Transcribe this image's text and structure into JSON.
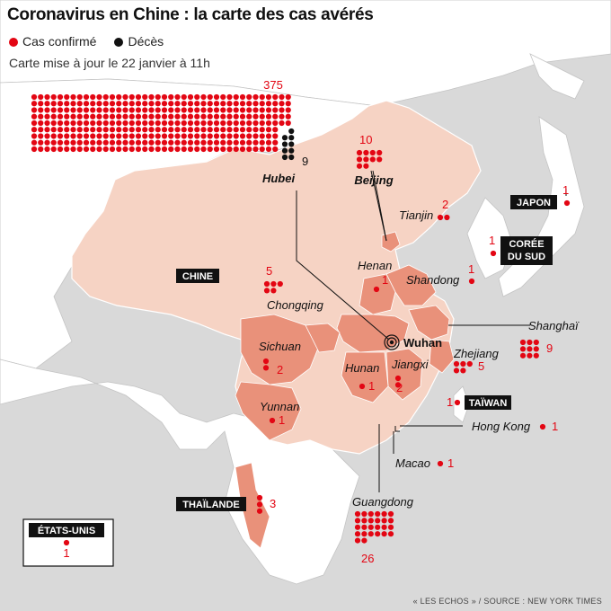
{
  "header": {
    "title": "Coronavirus en Chine : la carte des cas avérés",
    "legend_confirmed": "Cas confirmé",
    "legend_deaths": "Décès",
    "updated": "Carte mise à jour le 22 janvier à 11h"
  },
  "colors": {
    "confirmed": "#e30613",
    "deaths": "#111111",
    "china_fill": "#f6d3c4",
    "province_fill": "#e9917a",
    "water": "#d9d9d9",
    "land": "#ffffff"
  },
  "countries": [
    {
      "id": "china",
      "label": "CHINE"
    },
    {
      "id": "japan",
      "label": "JAPON",
      "confirmed": 1
    },
    {
      "id": "korea",
      "label_line1": "CORÉE",
      "label_line2": "DU SUD",
      "confirmed": 1
    },
    {
      "id": "taiwan",
      "label": "TAÏWAN",
      "confirmed": 1
    },
    {
      "id": "thailand",
      "label": "THAÏLANDE",
      "confirmed": 3
    },
    {
      "id": "usa",
      "label": "ÉTATS-UNIS",
      "confirmed": 1
    }
  ],
  "hubei": {
    "label": "Hubei",
    "confirmed": 375,
    "deaths": 9,
    "epicenter": "Wuhan"
  },
  "regions": [
    {
      "id": "beijing",
      "label": "Beijing",
      "confirmed": 10
    },
    {
      "id": "tianjin",
      "label": "Tianjin",
      "confirmed": 2
    },
    {
      "id": "henan",
      "label": "Henan",
      "confirmed": 1
    },
    {
      "id": "shandong",
      "label": "Shandong",
      "confirmed": 1
    },
    {
      "id": "chongqing",
      "label": "Chongqing",
      "confirmed": 5
    },
    {
      "id": "shanghai",
      "label": "Shanghaï",
      "confirmed": 9
    },
    {
      "id": "zhejiang",
      "label": "Zhejiang",
      "confirmed": 5
    },
    {
      "id": "sichuan",
      "label": "Sichuan",
      "confirmed": 2
    },
    {
      "id": "hunan",
      "label": "Hunan",
      "confirmed": 1
    },
    {
      "id": "jiangxi",
      "label": "Jiangxi",
      "confirmed": 2
    },
    {
      "id": "yunnan",
      "label": "Yunnan",
      "confirmed": 1
    },
    {
      "id": "hongkong",
      "label": "Hong Kong",
      "confirmed": 1
    },
    {
      "id": "macao",
      "label": "Macao",
      "confirmed": 1
    },
    {
      "id": "guangdong",
      "label": "Guangdong",
      "confirmed": 26
    }
  ],
  "footer": {
    "source": "« LES ECHOS » / SOURCE : NEW YORK TIMES"
  }
}
